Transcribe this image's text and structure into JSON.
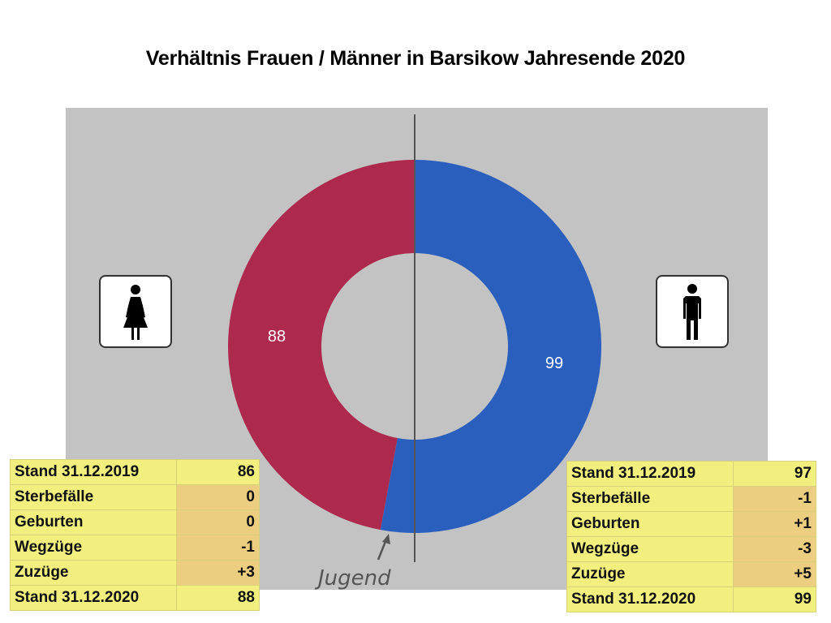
{
  "chart_data": {
    "type": "pie",
    "title": "Verhältnis Frauen / Männer in Barsikow Jahresende 2020",
    "slices": [
      {
        "name": "Frauen",
        "value": 88,
        "color": "#ad2a4e"
      },
      {
        "name": "Männer",
        "value": 99,
        "color": "#2b5fbd"
      }
    ],
    "inner_segment": {
      "share_of_total": 0.032,
      "color": "#2b5fbd"
    },
    "annotation": "Jugend",
    "background_color": "#c3c3c3",
    "divider_color": "#555555"
  },
  "icons": {
    "left": "female-icon",
    "right": "male-icon"
  },
  "tables": {
    "frauen": {
      "rows": [
        {
          "label": "Stand 31.12.2019",
          "value": "86"
        },
        {
          "label": "Sterbefälle",
          "value": "0"
        },
        {
          "label": "Geburten",
          "value": "0"
        },
        {
          "label": "Wegzüge",
          "value": "-1"
        },
        {
          "label": "Zuzüge",
          "value": "+3"
        },
        {
          "label": "Stand 31.12.2020",
          "value": "88"
        }
      ]
    },
    "maenner": {
      "rows": [
        {
          "label": "Stand 31.12.2019",
          "value": "97"
        },
        {
          "label": "Sterbefälle",
          "value": "-1"
        },
        {
          "label": "Geburten",
          "value": "+1"
        },
        {
          "label": "Wegzüge",
          "value": "-3"
        },
        {
          "label": "Zuzüge",
          "value": "+5"
        },
        {
          "label": "Stand 31.12.2020",
          "value": "99"
        }
      ]
    }
  }
}
